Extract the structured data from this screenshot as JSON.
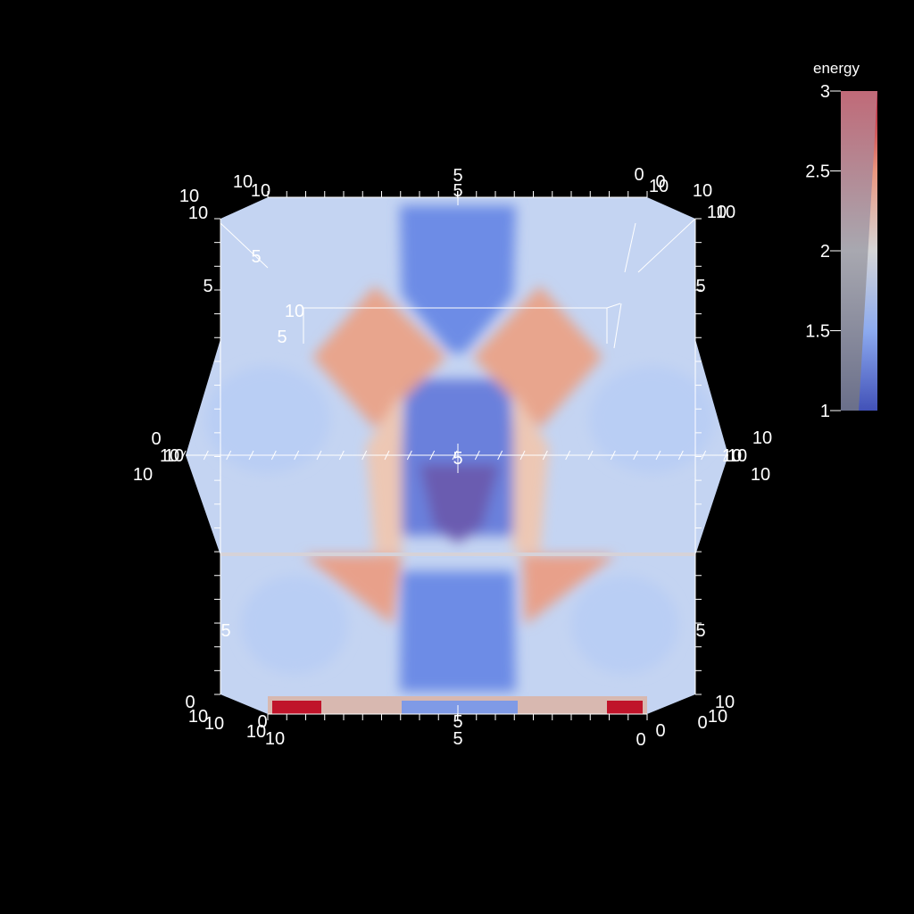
{
  "chart_data": {
    "type": "heatmap",
    "title": "",
    "scalar_name": "energy",
    "colormap": "coolwarm",
    "colorbar": {
      "title": "energy",
      "min": 1,
      "max": 3,
      "ticks": [
        {
          "value": 1,
          "label": "1"
        },
        {
          "value": 1.5,
          "label": "1.5"
        },
        {
          "value": 2,
          "label": "2"
        },
        {
          "value": 2.5,
          "label": "2.5"
        },
        {
          "value": 3,
          "label": "3"
        }
      ],
      "placement": "right"
    },
    "axes": {
      "x": {
        "range": [
          0,
          10
        ],
        "tick_labels": [
          "0",
          "5",
          "10"
        ]
      },
      "y": {
        "range": [
          0,
          10
        ],
        "tick_labels": [
          "0",
          "5",
          "10"
        ]
      },
      "z": {
        "range": [
          0,
          10
        ],
        "tick_labels": [
          "0",
          "5",
          "10"
        ]
      }
    },
    "axis_labels": [
      {
        "text": "10"
      },
      {
        "text": "0"
      },
      {
        "text": "5"
      },
      {
        "text": "10"
      },
      {
        "text": "10"
      },
      {
        "text": "10"
      },
      {
        "text": "5"
      },
      {
        "text": "0"
      },
      {
        "text": "10"
      },
      {
        "text": "10"
      },
      {
        "text": "10"
      },
      {
        "text": "10"
      },
      {
        "text": "5"
      },
      {
        "text": "5"
      },
      {
        "text": "10"
      },
      {
        "text": "5"
      },
      {
        "text": "5"
      },
      {
        "text": "0"
      },
      {
        "text": "10"
      },
      {
        "text": "10"
      },
      {
        "text": "5"
      },
      {
        "text": "10"
      },
      {
        "text": "10"
      },
      {
        "text": "10"
      },
      {
        "text": "5"
      },
      {
        "text": "5"
      },
      {
        "text": "0"
      },
      {
        "text": "10"
      },
      {
        "text": "10"
      },
      {
        "text": "0"
      },
      {
        "text": "10"
      },
      {
        "text": "10"
      },
      {
        "text": "5"
      },
      {
        "text": "0"
      },
      {
        "text": "10"
      },
      {
        "text": "10"
      },
      {
        "text": "10"
      },
      {
        "text": "5"
      },
      {
        "text": "0"
      },
      {
        "text": "0"
      },
      {
        "text": "10"
      }
    ],
    "grid": false
  }
}
